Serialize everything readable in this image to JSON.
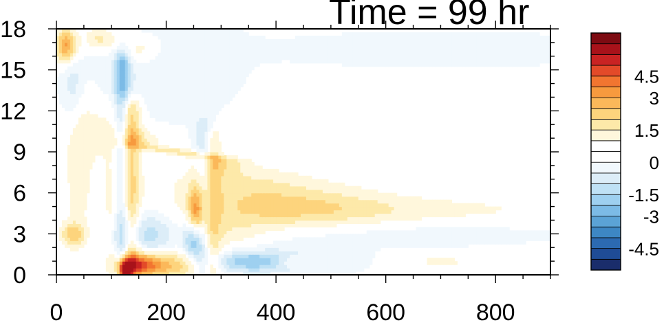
{
  "chart_data": {
    "type": "heatmap",
    "title": "Time = 99 hr",
    "xlabel": "",
    "ylabel": "",
    "xlim": [
      0,
      900
    ],
    "ylim": [
      0,
      18
    ],
    "x_ticks": [
      "0",
      "200",
      "400",
      "600",
      "800"
    ],
    "x_tick_values": [
      0,
      200,
      400,
      600,
      800
    ],
    "y_ticks": [
      "0",
      "3",
      "6",
      "9",
      "12",
      "15",
      "18"
    ],
    "y_tick_values": [
      0,
      3,
      6,
      9,
      12,
      15,
      18
    ],
    "colorbar": {
      "levels": [
        -5.4,
        -4.8,
        -4.2,
        -3.6,
        -3.0,
        -2.4,
        -1.8,
        -1.2,
        -0.6,
        -0.1,
        0.1,
        0.6,
        1.2,
        1.8,
        2.4,
        3.0,
        3.6,
        4.2,
        4.8,
        5.4
      ],
      "label_values": [
        -4.5,
        -3,
        -1.5,
        0,
        1.5,
        3,
        4.5
      ],
      "labels": [
        "-4.5",
        "-3",
        "-1.5",
        "0",
        "1.5",
        "3",
        "4.5"
      ],
      "colors": [
        "#1a2d6b",
        "#1f4c96",
        "#2c6ab1",
        "#3d87c4",
        "#5ba3d6",
        "#7cbbe6",
        "#9ed0f0",
        "#bfe1f5",
        "#dcedf8",
        "#f1f8fd",
        "#ffffff",
        "#ffffff",
        "#fff7dc",
        "#fde9a9",
        "#fdd47d",
        "#fbb85a",
        "#f79a3e",
        "#f27530",
        "#e34a29",
        "#c92323",
        "#a8121a",
        "#7d0b12"
      ]
    },
    "features": [
      {
        "x": 100,
        "y": 4.5,
        "sx": 13,
        "sy": 3.5,
        "v": 0.8
      },
      {
        "x": 160,
        "y": 3.0,
        "sx": 45,
        "sy": 1.2,
        "v": -1.6
      },
      {
        "x": 300,
        "y": 3.0,
        "sx": 60,
        "sy": 1.0,
        "v": 0.9
      },
      {
        "x": 150,
        "y": 0.8,
        "sx": 28,
        "sy": 0.6,
        "v": 3.8
      },
      {
        "x": 210,
        "y": 0.7,
        "sx": 40,
        "sy": 0.7,
        "v": 2.2
      },
      {
        "x": 125,
        "y": 0.3,
        "sx": 8,
        "sy": 0.5,
        "v": 5.5
      },
      {
        "x": 18,
        "y": 16.8,
        "sx": 14,
        "sy": 0.9,
        "v": 3.3
      },
      {
        "x": 30,
        "y": 3.0,
        "sx": 16,
        "sy": 0.6,
        "v": 2.0
      },
      {
        "x": 420,
        "y": 5.0,
        "sx": 130,
        "sy": 1.2,
        "v": 1.7
      },
      {
        "x": 680,
        "y": 4.8,
        "sx": 220,
        "sy": 0.7,
        "v": 0.7
      },
      {
        "x": 330,
        "y": 6.8,
        "sx": 90,
        "sy": 1.0,
        "v": 0.9
      },
      {
        "x": 350,
        "y": 1.0,
        "sx": 45,
        "sy": 0.5,
        "v": -2.0
      },
      {
        "x": 420,
        "y": 1.2,
        "sx": 80,
        "sy": 0.9,
        "v": -0.7
      },
      {
        "x": 250,
        "y": 2.6,
        "sx": 12,
        "sy": 1.0,
        "v": -3.0
      },
      {
        "x": 255,
        "y": 4.5,
        "sx": 10,
        "sy": 1.5,
        "v": 3.0
      },
      {
        "x": 40,
        "y": 8.0,
        "sx": 20,
        "sy": 4.5,
        "v": 0.9
      },
      {
        "x": 30,
        "y": 14.0,
        "sx": 14,
        "sy": 2.0,
        "v": -1.0
      },
      {
        "x": 180,
        "y": 15.5,
        "sx": 90,
        "sy": 2.5,
        "v": -0.6
      },
      {
        "x": 80,
        "y": 10.5,
        "sx": 30,
        "sy": 1.5,
        "v": 0.7
      },
      {
        "x": 700,
        "y": 16.5,
        "sx": 200,
        "sy": 0.8,
        "v": -0.4
      },
      {
        "x": 700,
        "y": 1.0,
        "sx": 25,
        "sy": 0.3,
        "v": 1.2
      },
      {
        "x": 430,
        "y": 1.0,
        "sx": 20,
        "sy": 0.3,
        "v": 0.9
      },
      {
        "x": 600,
        "y": 3.0,
        "sx": 200,
        "sy": 0.6,
        "v": -0.4
      },
      {
        "x": 80,
        "y": 17.3,
        "sx": 20,
        "sy": 0.6,
        "v": 1.5
      },
      {
        "x": 150,
        "y": 16.5,
        "sx": 30,
        "sy": 0.8,
        "v": 1.2
      }
    ],
    "streaks": [
      {
        "x0": 120,
        "y0": 0.5,
        "x1": 120,
        "y1": 15.5,
        "w": 10,
        "v": -2.5
      },
      {
        "x0": 130,
        "y0": 0.5,
        "x1": 132,
        "y1": 12.0,
        "w": 14,
        "v": 2.6
      },
      {
        "x0": 145,
        "y0": 9.5,
        "x1": 300,
        "y1": 8.5,
        "w": 30,
        "v": 1.6
      },
      {
        "x0": 270,
        "y0": 0.5,
        "x1": 272,
        "y1": 10.5,
        "w": 12,
        "v": -1.7
      },
      {
        "x0": 280,
        "y0": 0.5,
        "x1": 282,
        "y1": 10.0,
        "w": 12,
        "v": 1.8
      }
    ]
  }
}
